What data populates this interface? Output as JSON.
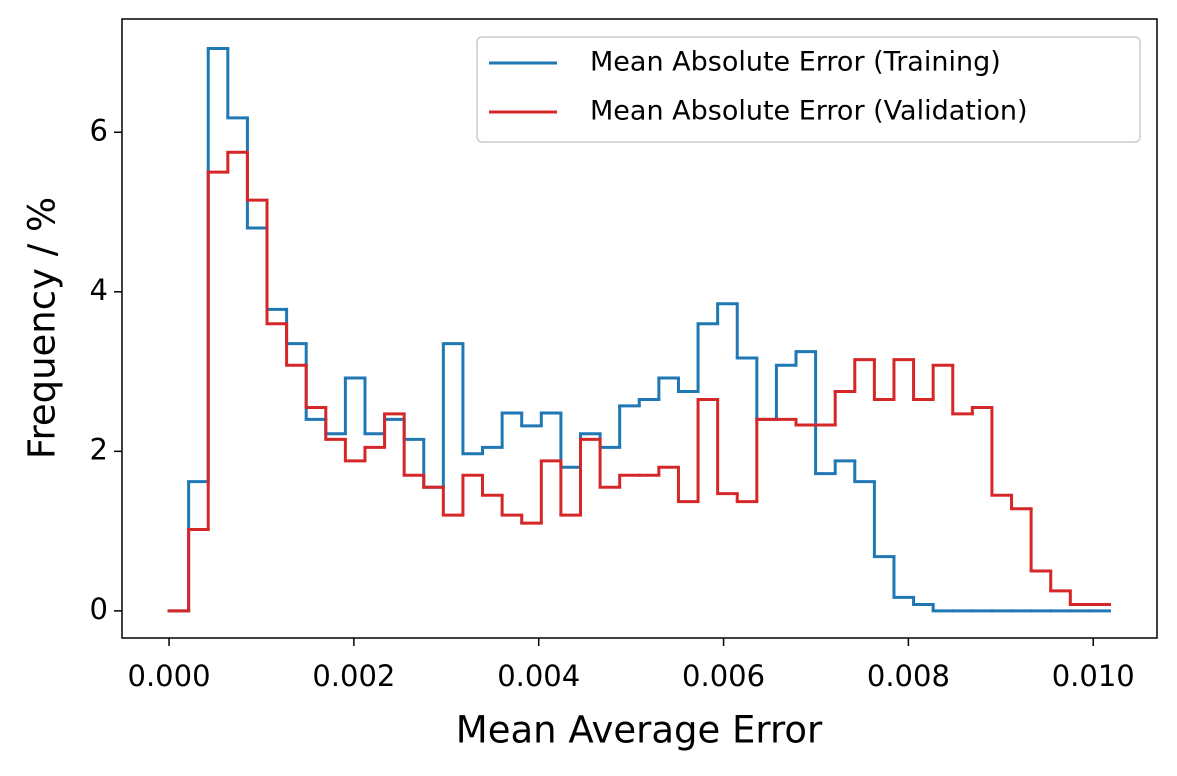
{
  "chart_data": {
    "type": "histogram",
    "xlabel": "Mean Average Error",
    "ylabel": "Frequency / %",
    "bins": [
      0,
      0.000212,
      0.000424,
      0.000636,
      0.000848,
      0.00106,
      0.001272,
      0.001484,
      0.001696,
      0.001908,
      0.00212,
      0.002332,
      0.002544,
      0.002756,
      0.002968,
      0.00318,
      0.003392,
      0.003604,
      0.003816,
      0.004028,
      0.00424,
      0.004452,
      0.004664,
      0.004876,
      0.005088,
      0.0053,
      0.005512,
      0.005724,
      0.005936,
      0.006148,
      0.00636,
      0.006572,
      0.006784,
      0.006996,
      0.007208,
      0.00742,
      0.007632,
      0.007844,
      0.008056,
      0.008268,
      0.00848,
      0.008692,
      0.008904,
      0.009116,
      0.009328,
      0.00954,
      0.009752,
      0.009964,
      0.010176
    ],
    "series": [
      {
        "name": "Mean Absolute Error (Training)",
        "color": "#1f77b4",
        "values": [
          0,
          1.62,
          7.05,
          6.18,
          4.8,
          3.78,
          3.35,
          2.4,
          2.22,
          2.92,
          2.22,
          2.4,
          2.15,
          1.55,
          3.35,
          1.97,
          2.05,
          2.48,
          2.32,
          2.48,
          1.8,
          2.22,
          2.05,
          2.57,
          2.65,
          2.92,
          2.75,
          3.6,
          3.85,
          3.17,
          2.4,
          3.08,
          3.25,
          1.72,
          1.88,
          1.62,
          0.68,
          0.17,
          0.08,
          0,
          0,
          0,
          0,
          0,
          0,
          0,
          0,
          0
        ]
      },
      {
        "name": "Mean Absolute Error (Validation)",
        "color": "#d62728",
        "values": [
          0,
          1.02,
          5.5,
          5.75,
          5.15,
          3.6,
          3.08,
          2.55,
          2.15,
          1.88,
          2.05,
          2.47,
          1.7,
          1.55,
          1.2,
          1.7,
          1.45,
          1.2,
          1.1,
          1.88,
          1.2,
          2.15,
          1.55,
          1.7,
          1.7,
          1.8,
          1.37,
          2.65,
          1.47,
          1.37,
          2.4,
          2.4,
          2.33,
          2.33,
          2.75,
          3.15,
          2.65,
          3.15,
          2.65,
          3.08,
          2.47,
          2.55,
          1.45,
          1.28,
          0.5,
          0.25,
          0.08,
          0.08
        ]
      }
    ],
    "xlim": [
      -0.000509,
      0.01069
    ],
    "ylim": [
      -0.34,
      7.42
    ],
    "xticks": [
      {
        "value": 0,
        "label": "0.000"
      },
      {
        "value": 0.002,
        "label": "0.002"
      },
      {
        "value": 0.004,
        "label": "0.004"
      },
      {
        "value": 0.006,
        "label": "0.006"
      },
      {
        "value": 0.008,
        "label": "0.008"
      },
      {
        "value": 0.01,
        "label": "0.010"
      }
    ],
    "yticks": [
      0,
      2,
      4,
      6
    ],
    "legend": "upper right"
  }
}
